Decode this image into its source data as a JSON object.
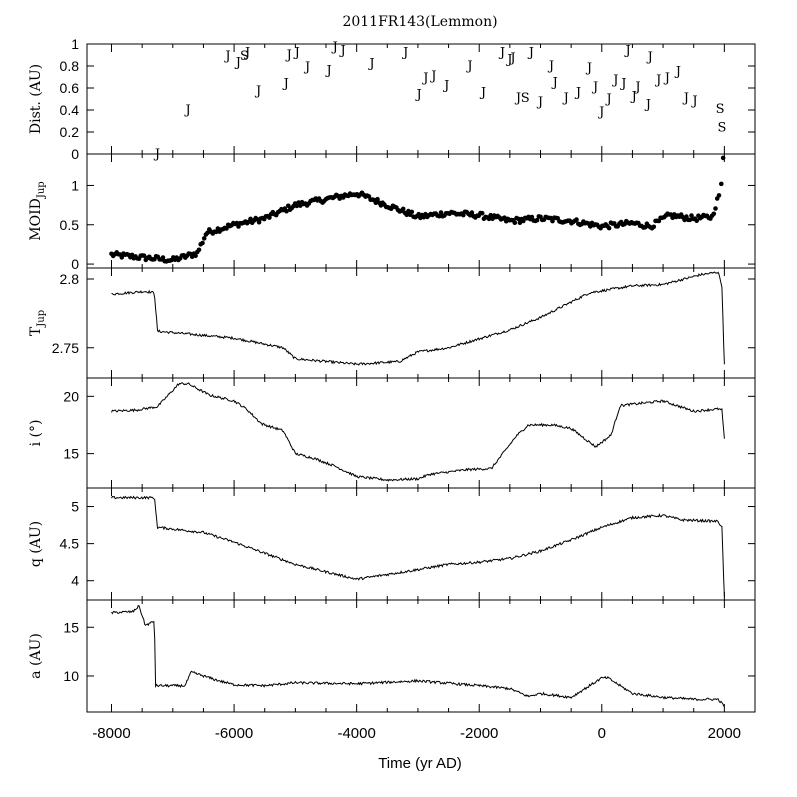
{
  "chart_data": {
    "type": "multi-panel",
    "title": "2011FR143(Lemmon)",
    "xlabel": "Time (yr AD)",
    "xlim": [
      -8400,
      2500
    ],
    "xticks": [
      -8000,
      -6000,
      -4000,
      -2000,
      0,
      2000
    ],
    "xtick_labels": [
      "-8000",
      "-6000",
      "-4000",
      "-2000",
      "0",
      "2000"
    ],
    "panels": [
      {
        "id": "dist",
        "type": "scatter-text",
        "ylabel": "Dist. (AU)",
        "ylim": [
          0,
          1
        ],
        "yticks": [
          0,
          0.2,
          0.4,
          0.6,
          0.8,
          1
        ],
        "ytick_labels": [
          "0",
          "0.2",
          "0.4",
          "0.6",
          "0.8",
          "1"
        ],
        "points": [
          {
            "x": -7250,
            "y": 0.01,
            "label": "J"
          },
          {
            "x": -6750,
            "y": 0.41,
            "label": "J"
          },
          {
            "x": -6100,
            "y": 0.9,
            "label": "J"
          },
          {
            "x": -5930,
            "y": 0.84,
            "label": "J"
          },
          {
            "x": -5830,
            "y": 0.9,
            "label": "S"
          },
          {
            "x": -5780,
            "y": 0.93,
            "label": "J"
          },
          {
            "x": -5600,
            "y": 0.58,
            "label": "J"
          },
          {
            "x": -5150,
            "y": 0.65,
            "label": "J"
          },
          {
            "x": -5100,
            "y": 0.91,
            "label": "J"
          },
          {
            "x": -4970,
            "y": 0.93,
            "label": "J"
          },
          {
            "x": -4800,
            "y": 0.8,
            "label": "J"
          },
          {
            "x": -4450,
            "y": 0.77,
            "label": "J"
          },
          {
            "x": -4350,
            "y": 0.98,
            "label": "J"
          },
          {
            "x": -4220,
            "y": 0.95,
            "label": "J"
          },
          {
            "x": -3750,
            "y": 0.83,
            "label": "J"
          },
          {
            "x": -3200,
            "y": 0.93,
            "label": "J"
          },
          {
            "x": -2980,
            "y": 0.55,
            "label": "J"
          },
          {
            "x": -2870,
            "y": 0.7,
            "label": "J"
          },
          {
            "x": -2740,
            "y": 0.72,
            "label": "J"
          },
          {
            "x": -2530,
            "y": 0.63,
            "label": "J"
          },
          {
            "x": -2150,
            "y": 0.81,
            "label": "J"
          },
          {
            "x": -1930,
            "y": 0.57,
            "label": "J"
          },
          {
            "x": -1620,
            "y": 0.93,
            "label": "J"
          },
          {
            "x": -1500,
            "y": 0.87,
            "label": "J"
          },
          {
            "x": -1450,
            "y": 0.88,
            "label": "J"
          },
          {
            "x": -1360,
            "y": 0.52,
            "label": "J"
          },
          {
            "x": -1250,
            "y": 0.52,
            "label": "S"
          },
          {
            "x": -1150,
            "y": 0.93,
            "label": "J"
          },
          {
            "x": -1000,
            "y": 0.48,
            "label": "J"
          },
          {
            "x": -820,
            "y": 0.81,
            "label": "J"
          },
          {
            "x": -760,
            "y": 0.66,
            "label": "J"
          },
          {
            "x": -580,
            "y": 0.52,
            "label": "J"
          },
          {
            "x": -380,
            "y": 0.57,
            "label": "J"
          },
          {
            "x": -200,
            "y": 0.79,
            "label": "J"
          },
          {
            "x": -100,
            "y": 0.62,
            "label": "J"
          },
          {
            "x": 0,
            "y": 0.39,
            "label": "J"
          },
          {
            "x": 120,
            "y": 0.51,
            "label": "J"
          },
          {
            "x": 230,
            "y": 0.68,
            "label": "J"
          },
          {
            "x": 360,
            "y": 0.65,
            "label": "J"
          },
          {
            "x": 430,
            "y": 0.95,
            "label": "J"
          },
          {
            "x": 530,
            "y": 0.53,
            "label": "J"
          },
          {
            "x": 590,
            "y": 0.62,
            "label": "J"
          },
          {
            "x": 760,
            "y": 0.46,
            "label": "J"
          },
          {
            "x": 790,
            "y": 0.89,
            "label": "J"
          },
          {
            "x": 930,
            "y": 0.68,
            "label": "J"
          },
          {
            "x": 1070,
            "y": 0.7,
            "label": "J"
          },
          {
            "x": 1250,
            "y": 0.76,
            "label": "J"
          },
          {
            "x": 1380,
            "y": 0.52,
            "label": "J"
          },
          {
            "x": 1520,
            "y": 0.49,
            "label": "J"
          },
          {
            "x": 1930,
            "y": 0.42,
            "label": "S"
          },
          {
            "x": 1960,
            "y": 0.25,
            "label": "S"
          }
        ]
      },
      {
        "id": "moid",
        "type": "scatter",
        "ylabel": "MOID",
        "ylabel_sub": "Jup",
        "ylim": [
          -0.05,
          1.4
        ],
        "yticks": [
          0,
          0.5,
          1
        ],
        "ytick_labels": [
          "0",
          "0.5",
          "1"
        ],
        "x": [
          -8000,
          -7000,
          -6600,
          -6450,
          -6000,
          -5500,
          -5000,
          -4000,
          -3000,
          -2500,
          -2000,
          -1500,
          -1000,
          -500,
          0,
          500,
          800,
          1100,
          1500,
          1800,
          1940,
          1960
        ],
        "y": [
          0.12,
          0.05,
          0.14,
          0.4,
          0.5,
          0.58,
          0.75,
          0.9,
          0.6,
          0.65,
          0.62,
          0.55,
          0.58,
          0.55,
          0.48,
          0.52,
          0.48,
          0.62,
          0.58,
          0.6,
          0.95,
          1.35
        ],
        "extra_points": [
          {
            "x": 1950,
            "y": 1.02
          },
          {
            "x": 1980,
            "y": 1.35
          }
        ]
      },
      {
        "id": "tjup",
        "type": "line",
        "ylabel": "T",
        "ylabel_sub": "Jup",
        "ylim": [
          2.728,
          2.808
        ],
        "yticks": [
          2.75,
          2.8
        ],
        "ytick_labels": [
          "2.75",
          "2.8"
        ],
        "x": [
          -8000,
          -7450,
          -7300,
          -7250,
          -6000,
          -5200,
          -5000,
          -4000,
          -3300,
          -3000,
          -2500,
          -1500,
          -1000,
          -200,
          500,
          1000,
          1600,
          1900,
          1960,
          2000
        ],
        "y": [
          2.789,
          2.791,
          2.79,
          2.762,
          2.757,
          2.75,
          2.742,
          2.738,
          2.74,
          2.747,
          2.75,
          2.763,
          2.772,
          2.79,
          2.795,
          2.796,
          2.803,
          2.805,
          2.795,
          2.738
        ]
      },
      {
        "id": "inc",
        "type": "line",
        "ylabel": "i (°)",
        "ylim": [
          12,
          21.6
        ],
        "yticks": [
          15,
          20
        ],
        "ytick_labels": [
          "15",
          "20"
        ],
        "x": [
          -8000,
          -7600,
          -7250,
          -6900,
          -6750,
          -6400,
          -6000,
          -5800,
          -5550,
          -5200,
          -5000,
          -4700,
          -4350,
          -4000,
          -3500,
          -3000,
          -2800,
          -2200,
          -1800,
          -1400,
          -1200,
          -800,
          -500,
          -100,
          150,
          300,
          1000,
          1500,
          1900,
          1960,
          2000
        ],
        "y": [
          18.7,
          18.8,
          19.1,
          21.1,
          21.1,
          20.1,
          19.6,
          18.9,
          17.6,
          17.0,
          15.0,
          14.6,
          13.9,
          13.0,
          12.7,
          12.8,
          13.2,
          13.6,
          13.7,
          16.5,
          17.5,
          17.5,
          17.2,
          15.6,
          16.6,
          19.2,
          19.6,
          18.7,
          18.9,
          18.8,
          16.3
        ]
      },
      {
        "id": "q",
        "type": "line",
        "ylabel": "q (AU)",
        "ylim": [
          3.74,
          5.25
        ],
        "yticks": [
          4,
          4.5,
          5
        ],
        "ytick_labels": [
          "4",
          "4.5",
          "5"
        ],
        "x": [
          -8000,
          -7300,
          -7250,
          -6500,
          -6000,
          -5000,
          -4000,
          -3000,
          -2500,
          -2000,
          -1500,
          -1000,
          -500,
          0,
          500,
          1000,
          1300,
          1900,
          1960,
          2000
        ],
        "y": [
          5.12,
          5.12,
          4.72,
          4.65,
          4.52,
          4.22,
          4.02,
          4.15,
          4.22,
          4.25,
          4.3,
          4.4,
          4.55,
          4.72,
          4.85,
          4.88,
          4.82,
          4.8,
          4.72,
          3.78
        ]
      },
      {
        "id": "a",
        "type": "line",
        "ylabel": "a (AU)",
        "ylim": [
          6.3,
          17.8
        ],
        "yticks": [
          10,
          15
        ],
        "ytick_labels": [
          "10",
          "15"
        ],
        "x": [
          -8000,
          -7650,
          -7550,
          -7450,
          -7300,
          -7280,
          -6800,
          -6700,
          -6300,
          -6000,
          -5500,
          -5000,
          -4000,
          -3000,
          -2000,
          -1500,
          -1200,
          -1000,
          -500,
          0,
          100,
          500,
          1000,
          1500,
          1900,
          2000
        ],
        "y": [
          16.5,
          16.6,
          17.2,
          15.2,
          15.6,
          9.0,
          9.0,
          10.4,
          9.6,
          9.1,
          9.0,
          9.3,
          9.2,
          9.5,
          9.0,
          8.7,
          7.9,
          8.2,
          7.8,
          9.8,
          9.8,
          8.2,
          7.8,
          7.6,
          7.6,
          6.9
        ]
      }
    ]
  }
}
